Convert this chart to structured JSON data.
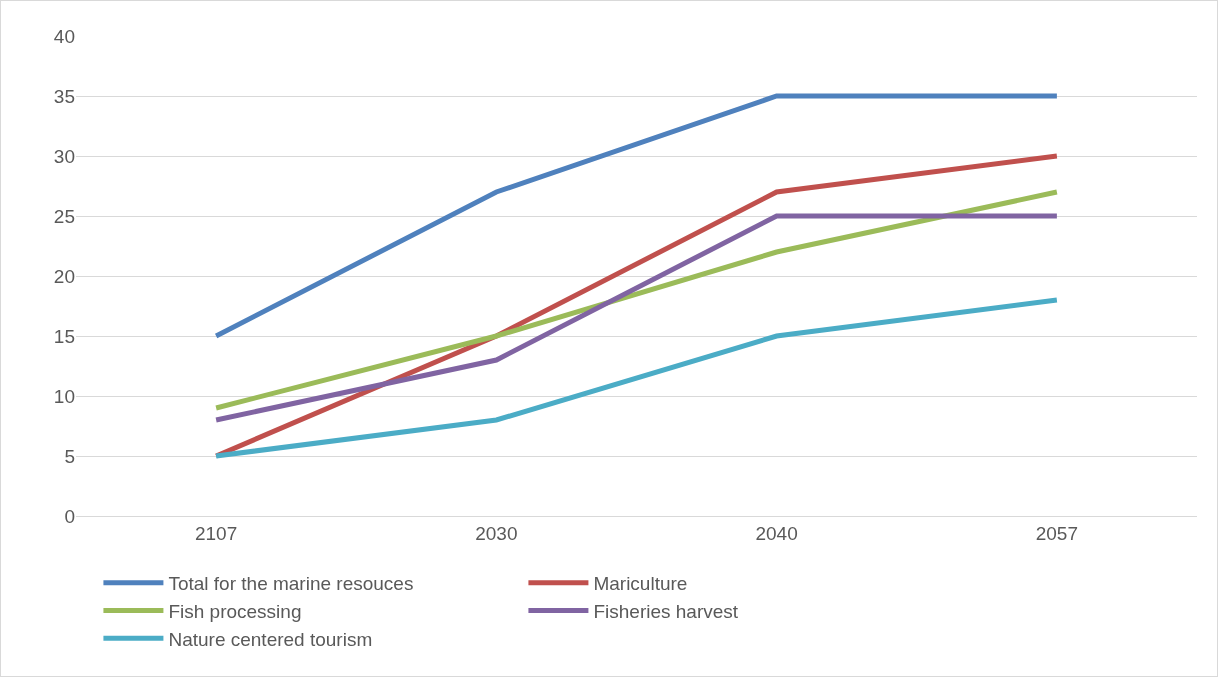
{
  "chart_data": {
    "type": "line",
    "categories": [
      "2107",
      "2030",
      "2040",
      "2057"
    ],
    "series": [
      {
        "name": "Total for the marine resouces",
        "color": "#4f81bd",
        "values": [
          15,
          27,
          35,
          35
        ]
      },
      {
        "name": "Mariculture",
        "color": "#c0504d",
        "values": [
          5,
          15,
          27,
          30
        ]
      },
      {
        "name": "Fish processing",
        "color": "#9bbb59",
        "values": [
          9,
          15,
          22,
          27
        ]
      },
      {
        "name": "Fisheries harvest",
        "color": "#8064a2",
        "values": [
          8,
          13,
          25,
          25
        ]
      },
      {
        "name": "Nature centered tourism",
        "color": "#4bacc6",
        "values": [
          5,
          8,
          15,
          18
        ]
      }
    ],
    "ylim": [
      0,
      40
    ],
    "yticks": [
      0,
      5,
      10,
      15,
      20,
      25,
      30,
      35,
      40
    ],
    "grid": "y",
    "legend": "bottom",
    "marker": "none",
    "line_style": "solid"
  }
}
